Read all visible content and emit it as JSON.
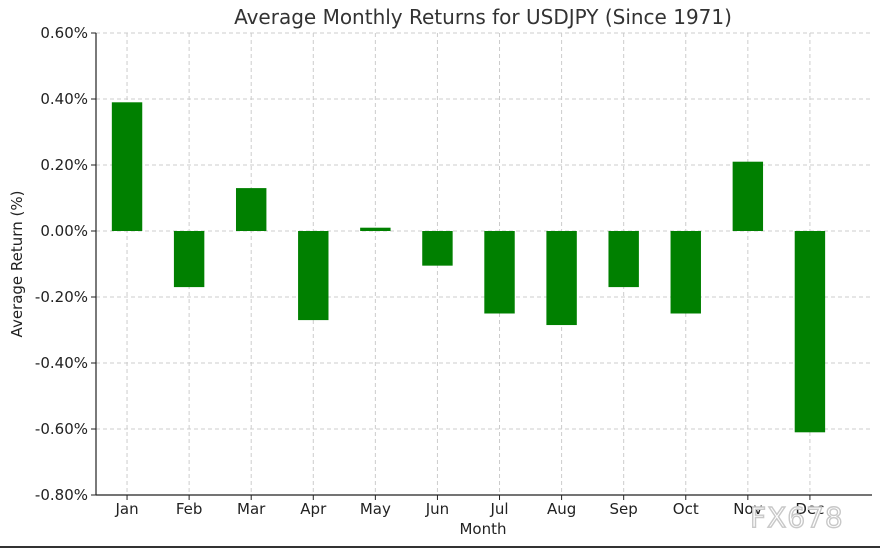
{
  "chart_data": {
    "type": "bar",
    "title": "Average Monthly Returns for USDJPY (Since 1971)",
    "xlabel": "Month",
    "ylabel": "Average Return (%)",
    "categories": [
      "Jan",
      "Feb",
      "Mar",
      "Apr",
      "May",
      "Jun",
      "Jul",
      "Aug",
      "Sep",
      "Oct",
      "Nov",
      "Dec"
    ],
    "values": [
      0.39,
      -0.17,
      0.13,
      -0.27,
      0.01,
      -0.105,
      -0.25,
      -0.285,
      -0.17,
      -0.25,
      0.21,
      -0.61
    ],
    "ylim": [
      -0.8,
      0.6
    ],
    "yticks": [
      0.6,
      0.4,
      0.2,
      0.0,
      -0.2,
      -0.4,
      -0.6,
      -0.8
    ],
    "ytick_labels": [
      "0.60%",
      "0.40%",
      "0.20%",
      "0.00%",
      "-0.20%",
      "-0.40%",
      "-0.60%",
      "-0.80%"
    ],
    "grid": true,
    "bar_color": "#008000",
    "grid_color": "#cccccc"
  },
  "watermark": "FX678"
}
